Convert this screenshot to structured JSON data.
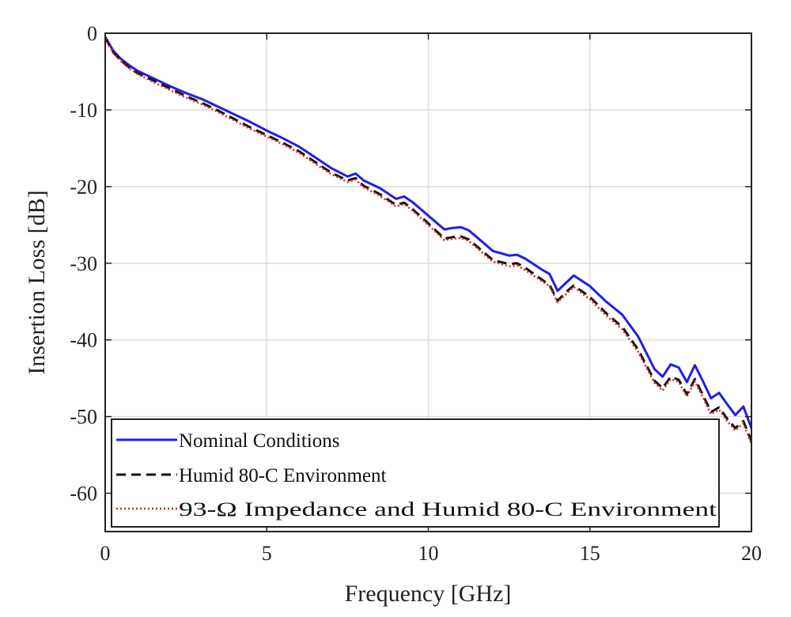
{
  "chart_data": {
    "type": "line",
    "title": "",
    "xlabel": "Frequency [GHz]",
    "ylabel": "Insertion Loss [dB]",
    "xlim": [
      0,
      20
    ],
    "ylim": [
      -65,
      0
    ],
    "xticks": [
      0,
      5,
      10,
      15,
      20
    ],
    "yticks": [
      0,
      -10,
      -20,
      -30,
      -40,
      -50,
      -60
    ],
    "grid": true,
    "legend_position": "bottom-left",
    "series": [
      {
        "name": "Nominal Conditions",
        "color": "#1f1fe6",
        "style": "solid",
        "points": [
          [
            0,
            -0.5
          ],
          [
            0.25,
            -2.3
          ],
          [
            0.5,
            -3.4
          ],
          [
            0.75,
            -4.2
          ],
          [
            1,
            -4.9
          ],
          [
            1.5,
            -5.9
          ],
          [
            2,
            -6.9
          ],
          [
            2.5,
            -7.8
          ],
          [
            3,
            -8.6
          ],
          [
            3.5,
            -9.6
          ],
          [
            4,
            -10.6
          ],
          [
            4.5,
            -11.6
          ],
          [
            5,
            -12.7
          ],
          [
            5.5,
            -13.7
          ],
          [
            6,
            -14.8
          ],
          [
            6.5,
            -16.2
          ],
          [
            7,
            -17.6
          ],
          [
            7.5,
            -18.7
          ],
          [
            7.75,
            -18.3
          ],
          [
            8,
            -19.2
          ],
          [
            8.5,
            -20.2
          ],
          [
            9,
            -21.6
          ],
          [
            9.25,
            -21.3
          ],
          [
            9.5,
            -22.0
          ],
          [
            10,
            -23.8
          ],
          [
            10.5,
            -25.6
          ],
          [
            10.75,
            -25.4
          ],
          [
            11,
            -25.3
          ],
          [
            11.25,
            -25.7
          ],
          [
            11.5,
            -26.6
          ],
          [
            12,
            -28.4
          ],
          [
            12.5,
            -29.0
          ],
          [
            12.75,
            -28.9
          ],
          [
            13,
            -29.4
          ],
          [
            13.5,
            -30.8
          ],
          [
            13.75,
            -31.4
          ],
          [
            14,
            -33.6
          ],
          [
            14.25,
            -32.6
          ],
          [
            14.5,
            -31.6
          ],
          [
            15,
            -33.0
          ],
          [
            15.5,
            -35.0
          ],
          [
            16,
            -36.7
          ],
          [
            16.5,
            -39.6
          ],
          [
            17,
            -43.8
          ],
          [
            17.25,
            -44.8
          ],
          [
            17.5,
            -43.2
          ],
          [
            17.75,
            -43.6
          ],
          [
            18,
            -45.5
          ],
          [
            18.25,
            -43.3
          ],
          [
            18.5,
            -45.4
          ],
          [
            18.75,
            -47.6
          ],
          [
            19,
            -46.9
          ],
          [
            19.25,
            -48.4
          ],
          [
            19.5,
            -49.8
          ],
          [
            19.75,
            -48.7
          ],
          [
            20,
            -51.5
          ]
        ]
      },
      {
        "name": "Humid 80-C Environment",
        "color": "#111111",
        "style": "dashed",
        "points": [
          [
            0,
            -0.6
          ],
          [
            0.25,
            -2.5
          ],
          [
            0.5,
            -3.6
          ],
          [
            0.75,
            -4.5
          ],
          [
            1,
            -5.2
          ],
          [
            1.5,
            -6.2
          ],
          [
            2,
            -7.2
          ],
          [
            2.5,
            -8.2
          ],
          [
            3,
            -9.1
          ],
          [
            3.5,
            -10.1
          ],
          [
            4,
            -11.2
          ],
          [
            4.5,
            -12.3
          ],
          [
            5,
            -13.3
          ],
          [
            5.5,
            -14.3
          ],
          [
            6,
            -15.4
          ],
          [
            6.5,
            -16.8
          ],
          [
            7,
            -18.2
          ],
          [
            7.5,
            -19.2
          ],
          [
            7.75,
            -18.9
          ],
          [
            8,
            -19.9
          ],
          [
            8.5,
            -21.0
          ],
          [
            9,
            -22.4
          ],
          [
            9.25,
            -22.1
          ],
          [
            9.5,
            -22.9
          ],
          [
            10,
            -24.8
          ],
          [
            10.5,
            -26.8
          ],
          [
            10.75,
            -26.6
          ],
          [
            11,
            -26.5
          ],
          [
            11.25,
            -26.9
          ],
          [
            11.5,
            -27.8
          ],
          [
            12,
            -29.6
          ],
          [
            12.5,
            -30.1
          ],
          [
            12.75,
            -30.0
          ],
          [
            13,
            -30.6
          ],
          [
            13.5,
            -32.1
          ],
          [
            13.75,
            -32.8
          ],
          [
            14,
            -34.9
          ],
          [
            14.25,
            -33.8
          ],
          [
            14.5,
            -32.9
          ],
          [
            15,
            -34.4
          ],
          [
            15.5,
            -36.5
          ],
          [
            16,
            -38.3
          ],
          [
            16.5,
            -41.3
          ],
          [
            17,
            -45.3
          ],
          [
            17.25,
            -46.3
          ],
          [
            17.5,
            -44.8
          ],
          [
            17.75,
            -45.2
          ],
          [
            18,
            -47.1
          ],
          [
            18.25,
            -45.1
          ],
          [
            18.5,
            -47.2
          ],
          [
            18.75,
            -49.4
          ],
          [
            19,
            -48.8
          ],
          [
            19.25,
            -50.3
          ],
          [
            19.5,
            -51.5
          ],
          [
            19.75,
            -50.6
          ],
          [
            20,
            -53.2
          ]
        ]
      },
      {
        "name": "93-Ω Impedance and Humid 80-C Environment",
        "color": "#e02020",
        "style": "dotted",
        "points": [
          [
            0,
            -0.7
          ],
          [
            0.25,
            -2.6
          ],
          [
            0.5,
            -3.7
          ],
          [
            0.75,
            -4.6
          ],
          [
            1,
            -5.3
          ],
          [
            1.5,
            -6.4
          ],
          [
            2,
            -7.4
          ],
          [
            2.5,
            -8.4
          ],
          [
            3,
            -9.3
          ],
          [
            3.5,
            -10.3
          ],
          [
            4,
            -11.4
          ],
          [
            4.5,
            -12.5
          ],
          [
            5,
            -13.5
          ],
          [
            5.5,
            -14.5
          ],
          [
            6,
            -15.6
          ],
          [
            6.5,
            -17.0
          ],
          [
            7,
            -18.4
          ],
          [
            7.5,
            -19.4
          ],
          [
            7.75,
            -19.1
          ],
          [
            8,
            -20.1
          ],
          [
            8.5,
            -21.2
          ],
          [
            9,
            -22.6
          ],
          [
            9.25,
            -22.3
          ],
          [
            9.5,
            -23.1
          ],
          [
            10,
            -25.0
          ],
          [
            10.5,
            -27.0
          ],
          [
            10.75,
            -26.8
          ],
          [
            11,
            -26.7
          ],
          [
            11.25,
            -27.1
          ],
          [
            11.5,
            -28.0
          ],
          [
            12,
            -29.8
          ],
          [
            12.5,
            -30.4
          ],
          [
            12.75,
            -30.3
          ],
          [
            13,
            -30.9
          ],
          [
            13.5,
            -32.3
          ],
          [
            13.75,
            -33.0
          ],
          [
            14,
            -35.1
          ],
          [
            14.25,
            -34.1
          ],
          [
            14.5,
            -33.1
          ],
          [
            15,
            -34.7
          ],
          [
            15.5,
            -36.8
          ],
          [
            16,
            -38.6
          ],
          [
            16.5,
            -41.6
          ],
          [
            17,
            -45.6
          ],
          [
            17.25,
            -46.6
          ],
          [
            17.5,
            -45.1
          ],
          [
            17.75,
            -45.5
          ],
          [
            18,
            -47.4
          ],
          [
            18.25,
            -45.4
          ],
          [
            18.5,
            -47.5
          ],
          [
            18.75,
            -49.7
          ],
          [
            19,
            -49.1
          ],
          [
            19.25,
            -50.6
          ],
          [
            19.5,
            -51.8
          ],
          [
            19.75,
            -50.9
          ],
          [
            20,
            -53.6
          ]
        ]
      }
    ]
  }
}
